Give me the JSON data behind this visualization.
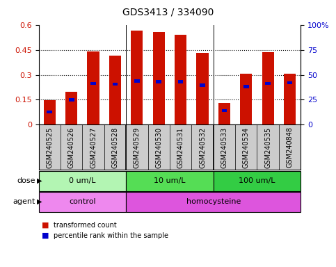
{
  "title": "GDS3413 / 334090",
  "samples": [
    "GSM240525",
    "GSM240526",
    "GSM240527",
    "GSM240528",
    "GSM240529",
    "GSM240530",
    "GSM240531",
    "GSM240532",
    "GSM240533",
    "GSM240534",
    "GSM240535",
    "GSM240848"
  ],
  "transformed_count": [
    0.148,
    0.197,
    0.443,
    0.418,
    0.57,
    0.56,
    0.545,
    0.432,
    0.128,
    0.305,
    0.438,
    0.305
  ],
  "percentile_rank": [
    0.073,
    0.148,
    0.247,
    0.242,
    0.262,
    0.258,
    0.258,
    0.237,
    0.083,
    0.228,
    0.247,
    0.252
  ],
  "ylim_left": [
    0,
    0.6
  ],
  "ylim_right": [
    0,
    100
  ],
  "yticks_left": [
    0,
    0.15,
    0.3,
    0.45,
    0.6
  ],
  "yticks_right": [
    0,
    25,
    50,
    75,
    100
  ],
  "ytick_labels_left": [
    "0",
    "0.15",
    "0.3",
    "0.45",
    "0.6"
  ],
  "ytick_labels_right": [
    "0",
    "25",
    "50",
    "75",
    "100%"
  ],
  "dose_groups": [
    {
      "label": "0 um/L",
      "start": 0,
      "end": 4,
      "color": "#b3f5b3"
    },
    {
      "label": "10 um/L",
      "start": 4,
      "end": 8,
      "color": "#55dd55"
    },
    {
      "label": "100 um/L",
      "start": 8,
      "end": 12,
      "color": "#33cc44"
    }
  ],
  "agent_groups": [
    {
      "label": "control",
      "start": 0,
      "end": 4,
      "color": "#ee88ee"
    },
    {
      "label": "homocysteine",
      "start": 4,
      "end": 12,
      "color": "#dd55dd"
    }
  ],
  "bar_color": "#cc1100",
  "marker_color": "#0000cc",
  "bar_width": 0.55,
  "legend_items": [
    {
      "color": "#cc1100",
      "label": "transformed count"
    },
    {
      "color": "#0000cc",
      "label": "percentile rank within the sample"
    }
  ],
  "dose_label": "dose",
  "agent_label": "agent",
  "group_boundaries": [
    4,
    8
  ]
}
